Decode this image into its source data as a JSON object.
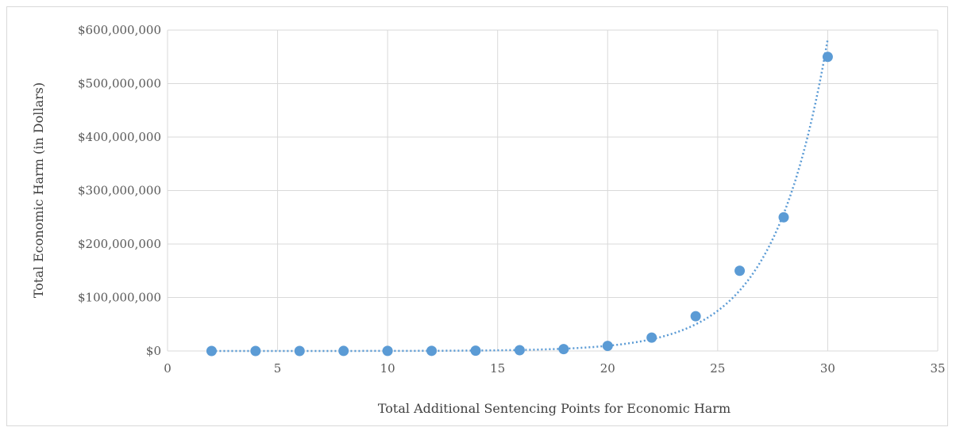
{
  "chart_data": {
    "type": "scatter",
    "title": "",
    "xlabel": "Total Additional Sentencing Points for Economic Harm",
    "ylabel": "Total Economic Harm (in Dollars)",
    "xlim": [
      0,
      35
    ],
    "ylim": [
      0,
      600000000
    ],
    "x_ticks": [
      0,
      5,
      10,
      15,
      20,
      25,
      30,
      35
    ],
    "y_ticks": [
      0,
      100000000,
      200000000,
      300000000,
      400000000,
      500000000,
      600000000
    ],
    "x_tick_labels": [
      "0",
      "5",
      "10",
      "15",
      "20",
      "25",
      "30",
      "35"
    ],
    "y_tick_labels": [
      "$0",
      "$100,000,000",
      "$200,000,000",
      "$300,000,000",
      "$400,000,000",
      "$500,000,000",
      "$600,000,000"
    ],
    "grid": true,
    "legend": "none",
    "trendline": "exponential",
    "series": [
      {
        "x": [
          2,
          4,
          6,
          8,
          10,
          12,
          14,
          16,
          18,
          20,
          22,
          24,
          26,
          28,
          30
        ],
        "y": [
          6500,
          15000,
          40000,
          95000,
          150000,
          250000,
          550000,
          1500000,
          3500000,
          9500000,
          25000000,
          65000000,
          150000000,
          250000000,
          550000000
        ],
        "color": "#5b9bd5"
      }
    ]
  }
}
